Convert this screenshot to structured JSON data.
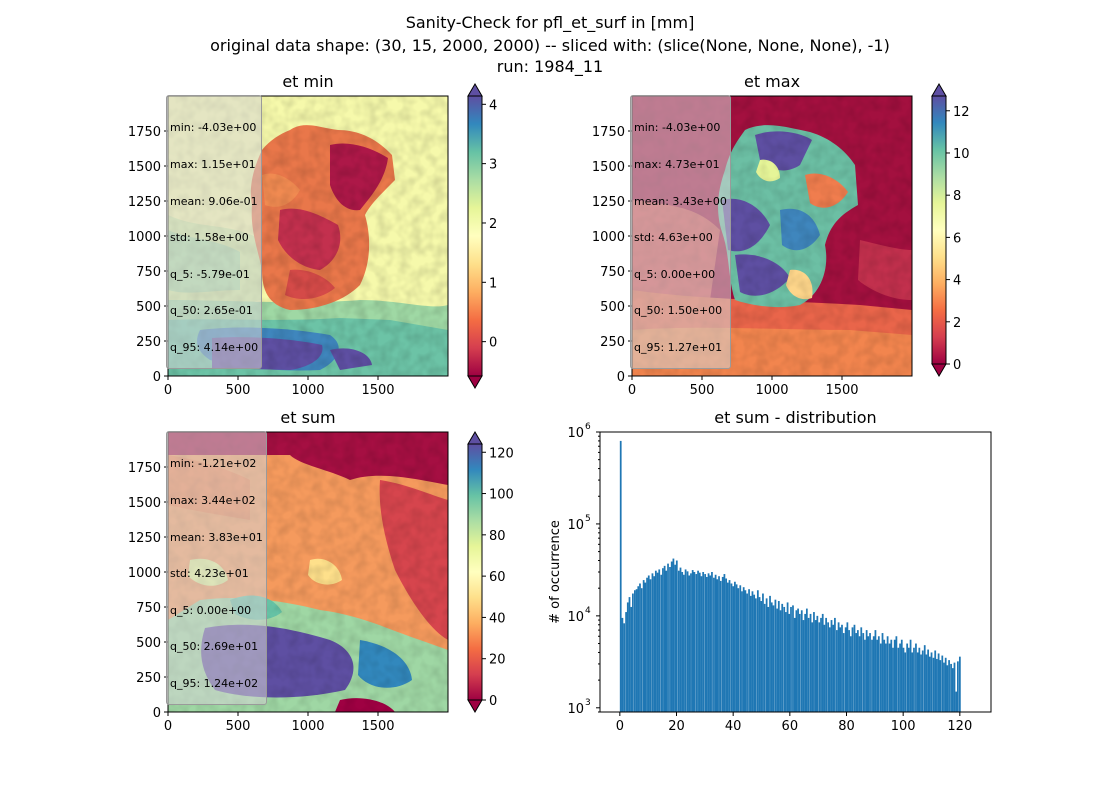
{
  "figure": {
    "suptitle_lines": [
      "Sanity-Check for pfl_et_surf in [mm]",
      "original data shape: (30, 15, 2000, 2000) -- sliced with: (slice(None, None, None), -1)",
      "run: 1984_11"
    ]
  },
  "panels": [
    {
      "title": "et min",
      "colormap": "Spectral",
      "stats": [
        "min: -4.03e+00",
        "max: 1.15e+01",
        "mean: 9.06e-01",
        "std: 1.58e+00",
        "q_5: -5.79e-01",
        "q_50: 2.65e-01",
        "q_95: 4.14e+00"
      ],
      "colorbar": {
        "vmin": -0.579,
        "vmax": 4.14,
        "ticks": [
          "0",
          "1",
          "2",
          "3",
          "4"
        ],
        "tick_values": [
          0,
          1,
          2,
          3,
          4
        ]
      }
    },
    {
      "title": "et max",
      "colormap": "Spectral",
      "stats": [
        "min: -4.03e+00",
        "max: 4.73e+01",
        "mean: 3.43e+00",
        "std: 4.63e+00",
        "q_5: 0.00e+00",
        "q_50: 1.50e+00",
        "q_95: 1.27e+01"
      ],
      "colorbar": {
        "vmin": 0,
        "vmax": 12.7,
        "ticks": [
          "0",
          "2",
          "4",
          "6",
          "8",
          "10",
          "12"
        ],
        "tick_values": [
          0,
          2,
          4,
          6,
          8,
          10,
          12
        ]
      }
    },
    {
      "title": "et sum",
      "colormap": "Spectral",
      "stats": [
        "min: -1.21e+02",
        "max: 3.44e+02",
        "mean: 3.83e+01",
        "std: 4.23e+01",
        "q_5: 0.00e+00",
        "q_50: 2.69e+01",
        "q_95: 1.24e+02"
      ],
      "colorbar": {
        "vmin": 0,
        "vmax": 124,
        "ticks": [
          "0",
          "20",
          "40",
          "60",
          "80",
          "100",
          "120"
        ],
        "tick_values": [
          0,
          20,
          40,
          60,
          80,
          100,
          120
        ]
      }
    }
  ],
  "map_axes": {
    "x_ticks": [
      "0",
      "500",
      "1000",
      "1500"
    ],
    "x_tick_values": [
      0,
      500,
      1000,
      1500
    ],
    "y_ticks": [
      "0",
      "250",
      "500",
      "750",
      "1000",
      "1250",
      "1500",
      "1750"
    ],
    "y_tick_values": [
      0,
      250,
      500,
      750,
      1000,
      1250,
      1500,
      1750
    ],
    "xlim": [
      0,
      2000
    ],
    "ylim": [
      0,
      2000
    ]
  },
  "chart_data": {
    "type": "bar",
    "title": "et sum - distribution",
    "xlabel": "",
    "ylabel": "# of occurrence",
    "yscale": "log",
    "xlim": [
      -7,
      131
    ],
    "ylim": [
      900,
      1000000
    ],
    "x_ticks": [
      "0",
      "20",
      "40",
      "60",
      "80",
      "100",
      "120"
    ],
    "x_tick_values": [
      0,
      20,
      40,
      60,
      80,
      100,
      120
    ],
    "y_tick_labels": [
      "10",
      "10",
      "10",
      "10"
    ],
    "y_tick_exponents": [
      "3",
      "4",
      "5",
      "6"
    ],
    "y_tick_values": [
      1000,
      10000,
      100000,
      1000000
    ],
    "color": "#1f77b4",
    "bin_width": 0.62,
    "bins_start": [
      0,
      0.6,
      1.2,
      1.9,
      2.5,
      3.1,
      3.7,
      4.3,
      5,
      5.6,
      6.2,
      6.8,
      7.4,
      8.1,
      8.7,
      9.3,
      9.9,
      10.5,
      11.2,
      11.8,
      12.4,
      13,
      13.6,
      14.3,
      14.9,
      15.5,
      16.1,
      16.7,
      17.4,
      18,
      18.6,
      19.2,
      19.8,
      20.5,
      21.1,
      21.7,
      22.3,
      22.9,
      23.6,
      24.2,
      24.8,
      25.4,
      26,
      26.7,
      27.3,
      27.9,
      28.5,
      29.1,
      29.8,
      30.4,
      31,
      31.6,
      32.2,
      32.9,
      33.5,
      34.1,
      34.7,
      35.3,
      36,
      36.6,
      37.2,
      37.8,
      38.4,
      39.1,
      39.7,
      40.3,
      40.9,
      41.5,
      42.2,
      42.8,
      43.4,
      44,
      44.6,
      45.3,
      45.9,
      46.5,
      47.1,
      47.7,
      48.4,
      49,
      49.6,
      50.2,
      50.8,
      51.5,
      52.1,
      52.7,
      53.3,
      53.9,
      54.6,
      55.2,
      55.8,
      56.4,
      57,
      57.7,
      58.3,
      58.9,
      59.5,
      60.1,
      60.8,
      61.4,
      62,
      62.6,
      63.2,
      63.9,
      64.5,
      65.1,
      65.7,
      66.3,
      67,
      67.6,
      68.2,
      68.8,
      69.4,
      70.1,
      70.7,
      71.3,
      71.9,
      72.5,
      73.2,
      73.8,
      74.4,
      75,
      75.6,
      76.3,
      76.9,
      77.5,
      78.1,
      78.7,
      79.4,
      80,
      80.6,
      81.2,
      81.8,
      82.5,
      83.1,
      83.7,
      84.3,
      84.9,
      85.6,
      86.2,
      86.8,
      87.4,
      88,
      88.7,
      89.3,
      89.9,
      90.5,
      91.1,
      91.8,
      92.4,
      93,
      93.6,
      94.2,
      94.9,
      95.5,
      96.1,
      96.7,
      97.3,
      98,
      98.6,
      99.2,
      99.8,
      100.4,
      101.1,
      101.7,
      102.3,
      102.9,
      103.5,
      104.2,
      104.8,
      105.4,
      106,
      106.6,
      107.3,
      107.9,
      108.5,
      109.1,
      109.7,
      110.4,
      111,
      111.6,
      112.2,
      112.8,
      113.5,
      114.1,
      114.7,
      115.3,
      115.9,
      116.6,
      117.2,
      117.8,
      118.4,
      119,
      119.7,
      120.3,
      120.9,
      121.5,
      122.1,
      122.8,
      123.4
    ],
    "counts": [
      800000,
      9500,
      8300,
      11000,
      14000,
      16000,
      12500,
      17500,
      19000,
      19500,
      21000,
      22500,
      20000,
      24500,
      23000,
      26000,
      27500,
      25000,
      29000,
      27000,
      31000,
      29500,
      32000,
      28000,
      33000,
      35000,
      31000,
      37000,
      34000,
      39000,
      42000,
      36000,
      40000,
      31000,
      33500,
      30000,
      28000,
      32000,
      30500,
      27500,
      29000,
      31500,
      30000,
      28500,
      31000,
      29500,
      27000,
      30000,
      28500,
      26500,
      29000,
      27500,
      30000,
      26000,
      28000,
      25000,
      27000,
      24000,
      26500,
      28500,
      25500,
      23000,
      24500,
      22500,
      21000,
      23500,
      22000,
      20000,
      21500,
      18500,
      20500,
      19000,
      17500,
      19500,
      16500,
      18500,
      17000,
      15500,
      19000,
      16000,
      14500,
      17500,
      13500,
      15500,
      12500,
      16500,
      14000,
      13000,
      15000,
      12000,
      14500,
      11500,
      13500,
      12500,
      11000,
      14000,
      10500,
      12500,
      13000,
      9500,
      11500,
      12000,
      10500,
      11500,
      9000,
      10500,
      12000,
      9500,
      10500,
      8500,
      11000,
      9000,
      10000,
      8500,
      9500,
      10500,
      8000,
      9500,
      8500,
      7500,
      9000,
      8000,
      9500,
      7000,
      8500,
      7500,
      8000,
      6500,
      7500,
      8500,
      7000,
      6000,
      7500,
      8000,
      6500,
      7000,
      6000,
      7500,
      6500,
      5500,
      7000,
      6000,
      6500,
      5500,
      6000,
      7000,
      5500,
      6000,
      5000,
      6500,
      5500,
      5000,
      6000,
      5000,
      5500,
      4500,
      5500,
      6000,
      4500,
      5000,
      5500,
      4500,
      4000,
      5000,
      4500,
      5500,
      4000,
      4500,
      5000,
      4000,
      4500,
      3800,
      4200,
      4800,
      3800,
      4300,
      3600,
      4000,
      3500,
      4200,
      3400,
      3900,
      3300,
      3700,
      3100,
      3500,
      2900,
      3300,
      3000,
      2700,
      3100,
      1500,
      3200,
      3600
    ]
  }
}
